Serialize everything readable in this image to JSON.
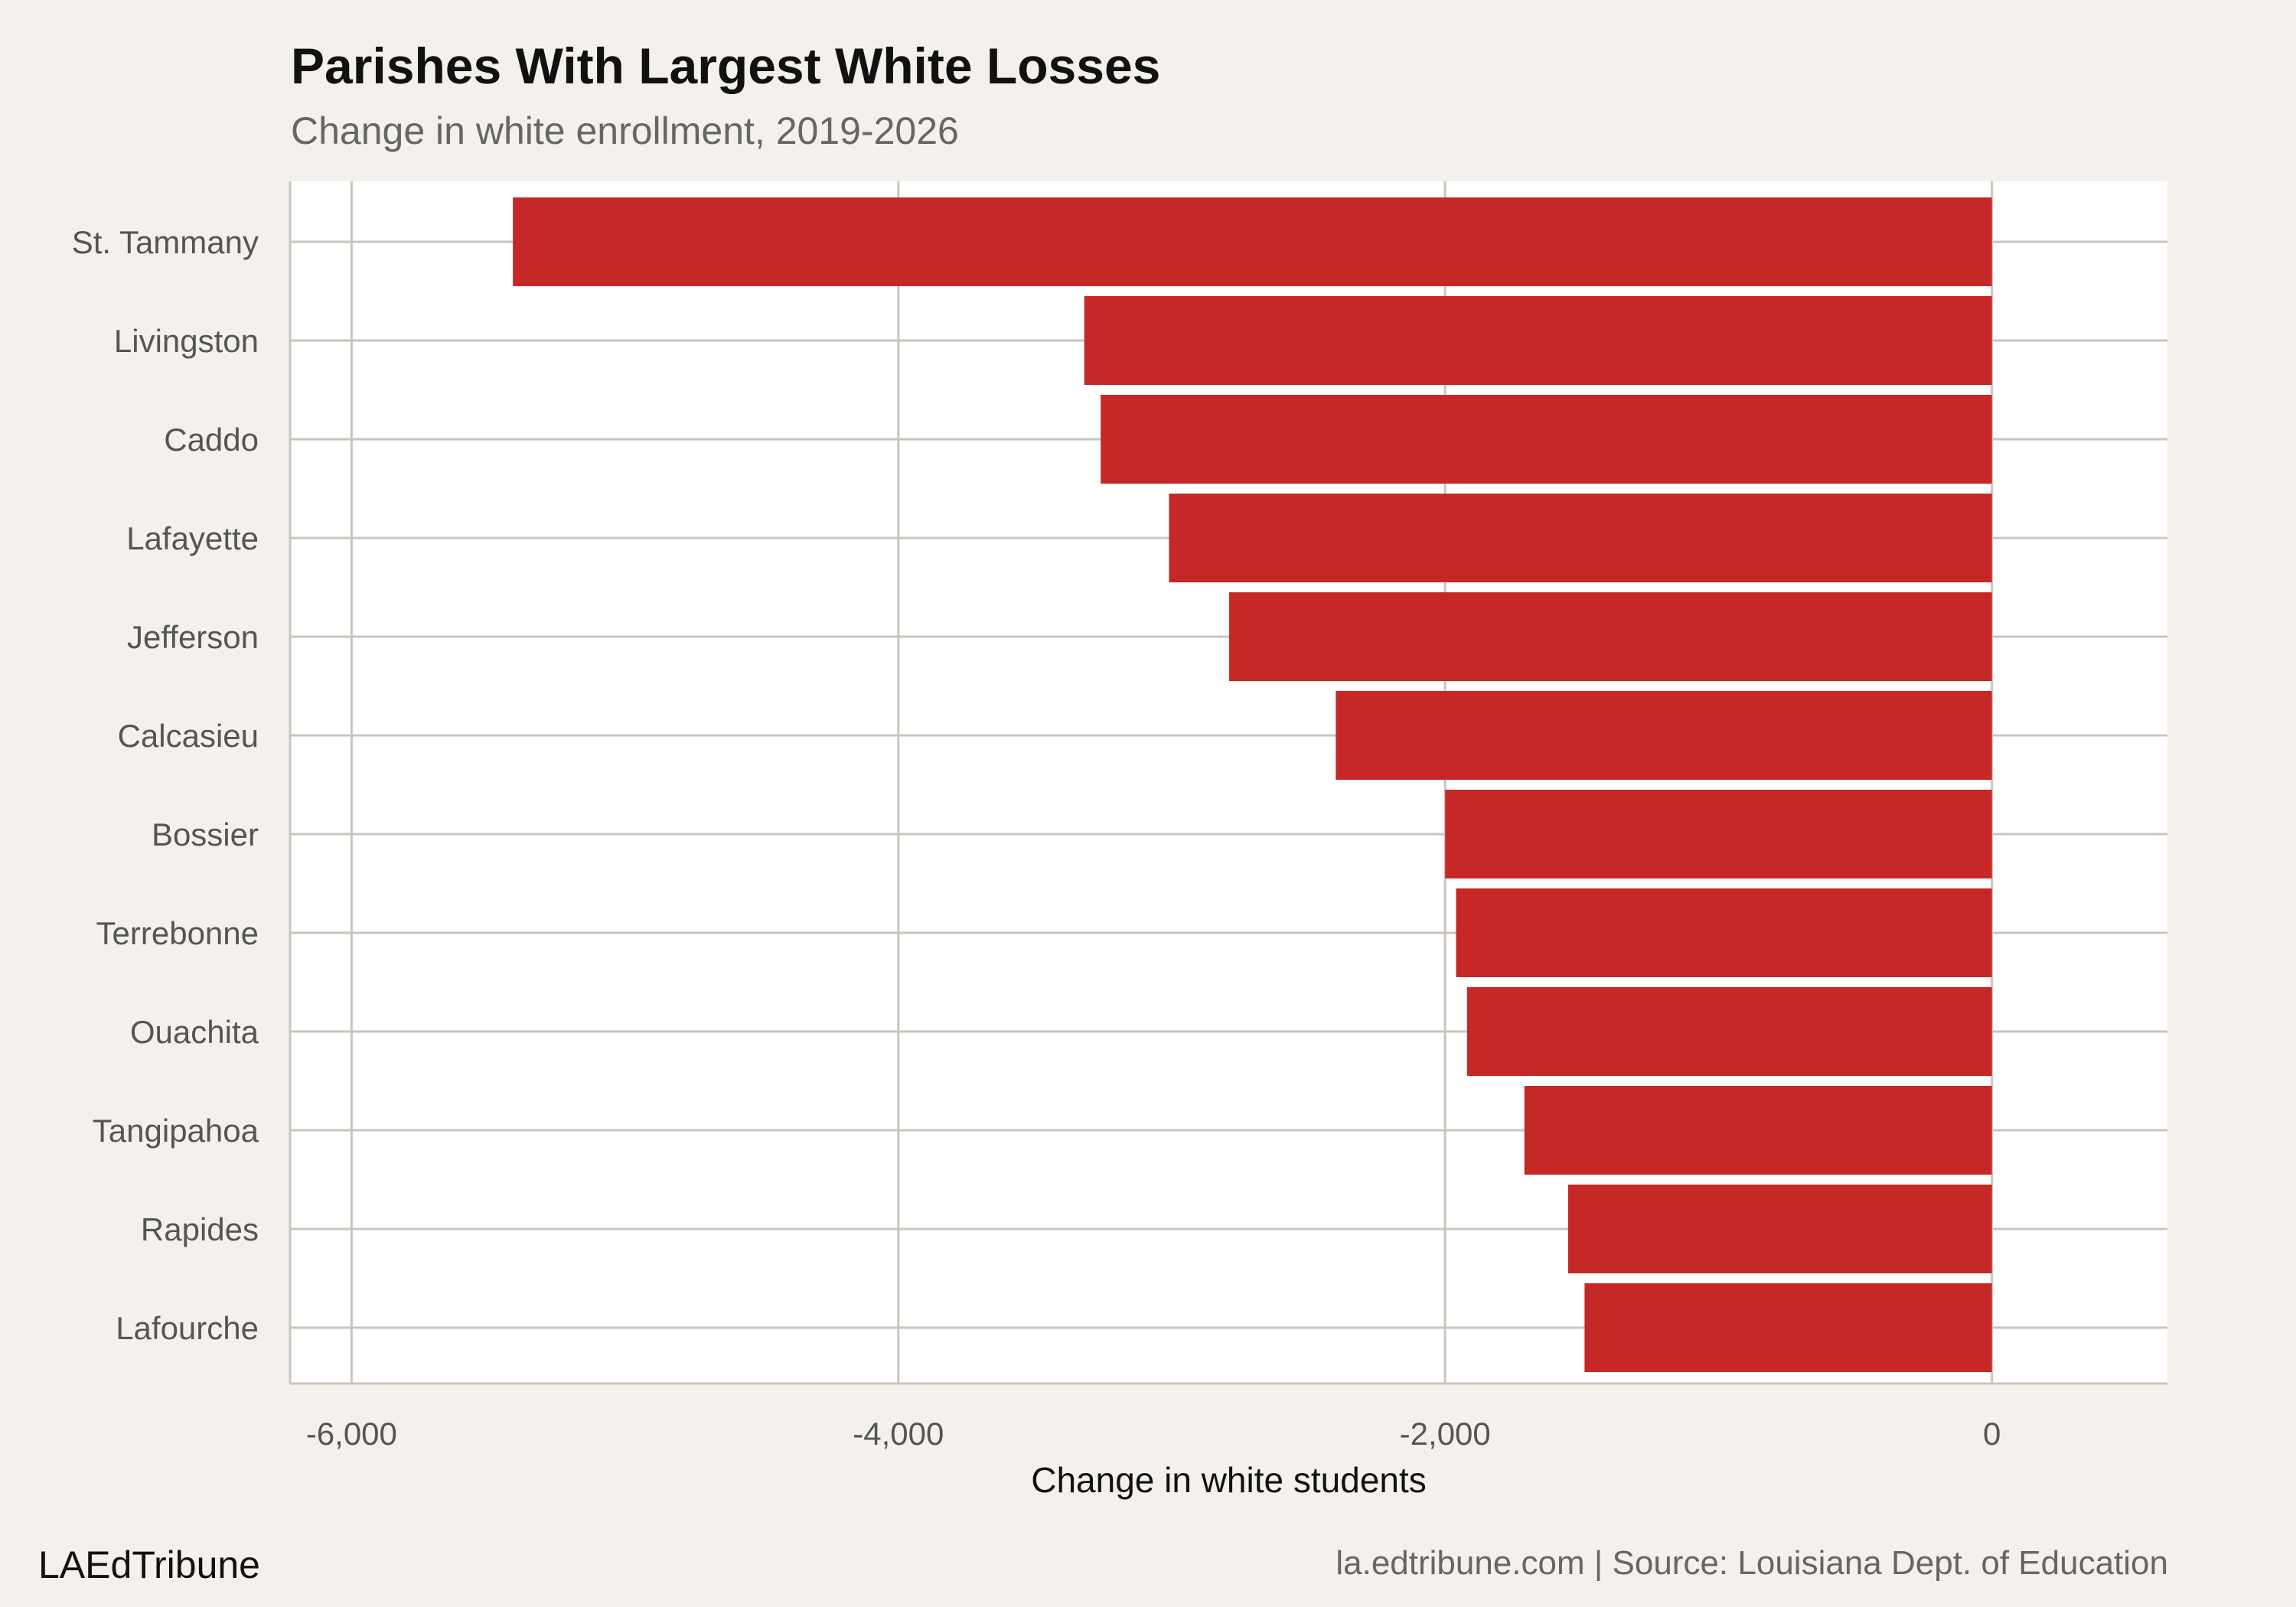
{
  "chart_data": {
    "type": "bar",
    "orientation": "horizontal",
    "title": "Parishes With Largest White Losses",
    "subtitle": "Change in white enrollment, 2019-2026",
    "xlabel": "Change in white students",
    "ylabel": "",
    "categories": [
      "St. Tammany",
      "Livingston",
      "Caddo",
      "Lafayette",
      "Jefferson",
      "Calcasieu",
      "Bossier",
      "Terrebonne",
      "Ouachita",
      "Tangipahoa",
      "Rapides",
      "Lafourche"
    ],
    "values": [
      -5410,
      -3320,
      -3260,
      -3010,
      -2790,
      -2400,
      -2000,
      -1960,
      -1920,
      -1710,
      -1550,
      -1490
    ],
    "xlim": [
      -6225,
      642
    ],
    "xticks": [
      -6000,
      -4000,
      -2000,
      0
    ],
    "xtick_labels": [
      "-6,000",
      "-4,000",
      "-2,000",
      "0"
    ],
    "grid": true,
    "bar_color": "#c62828",
    "grid_color": "#c9c5bc",
    "panel_background": "#ffffff",
    "page_background": "#f4f1ec"
  },
  "footer": {
    "brand": "LAEdTribune",
    "caption": "la.edtribune.com | Source: Louisiana Dept. of Education"
  }
}
